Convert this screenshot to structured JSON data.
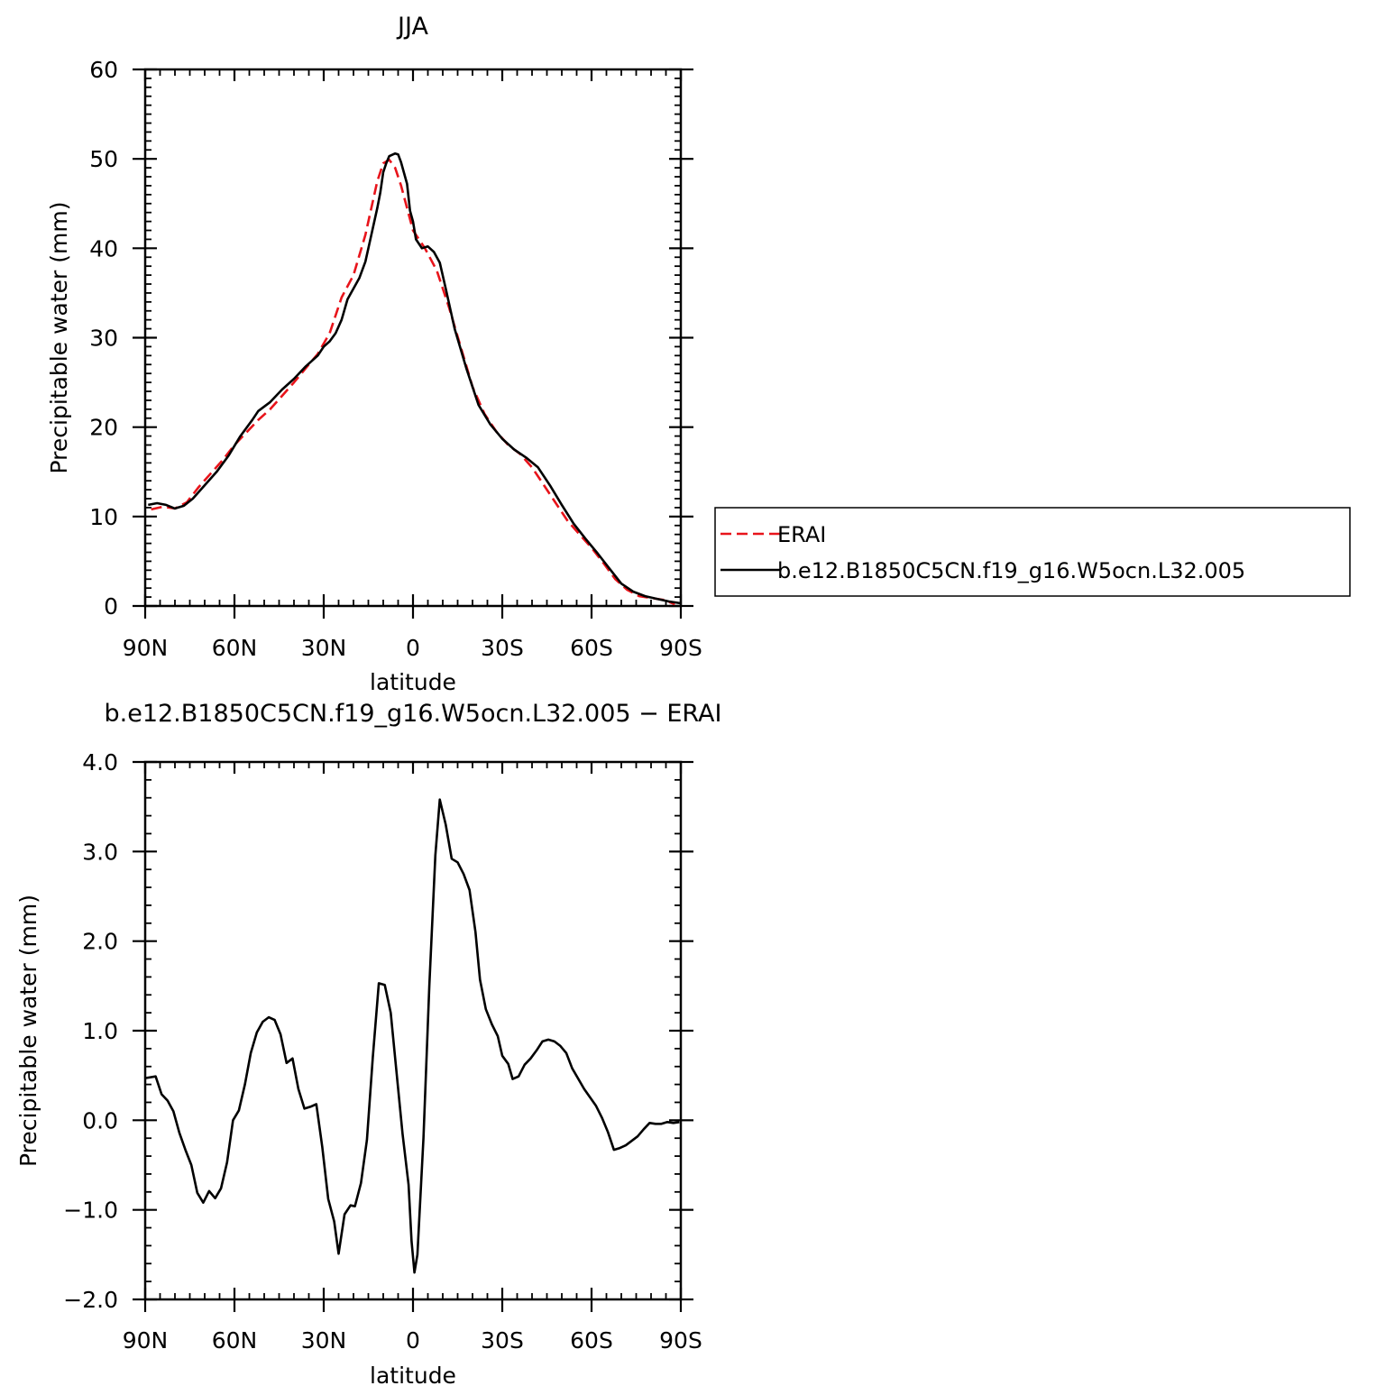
{
  "chart_data": [
    {
      "type": "line",
      "title": "JJA",
      "xlabel": "latitude",
      "ylabel": "Precipitable water (mm)",
      "xlim": [
        90,
        -90
      ],
      "ylim": [
        0,
        60
      ],
      "x_ticks": [
        90,
        60,
        30,
        0,
        -30,
        -60,
        -90
      ],
      "x_tick_labels": [
        "90N",
        "60N",
        "30N",
        "0",
        "30S",
        "60S",
        "90S"
      ],
      "y_ticks": [
        0,
        10,
        20,
        30,
        40,
        50,
        60
      ],
      "y_tick_labels": [
        "0",
        "10",
        "20",
        "30",
        "40",
        "50",
        "60"
      ],
      "grid": false,
      "legend": "right",
      "series": [
        {
          "name": "ERAI",
          "color": "#e8141b",
          "style": "dashed",
          "points": [
            [
              88,
              10.8
            ],
            [
              84,
              11.1
            ],
            [
              80,
              10.9
            ],
            [
              76,
              11.6
            ],
            [
              72,
              13.3
            ],
            [
              68,
              14.8
            ],
            [
              64,
              16.3
            ],
            [
              60,
              18
            ],
            [
              56,
              19.4
            ],
            [
              52,
              20.8
            ],
            [
              48,
              22
            ],
            [
              44,
              23.5
            ],
            [
              40,
              25
            ],
            [
              36,
              26.6
            ],
            [
              32,
              28.2
            ],
            [
              28,
              30.5
            ],
            [
              24,
              34.5
            ],
            [
              20,
              37
            ],
            [
              16,
              41.5
            ],
            [
              14,
              44.5
            ],
            [
              12,
              47.5
            ],
            [
              10,
              49.5
            ],
            [
              8,
              49.9
            ],
            [
              6,
              49
            ],
            [
              4,
              47
            ],
            [
              2,
              44.5
            ],
            [
              0,
              42
            ],
            [
              -4,
              40
            ],
            [
              -8,
              37.5
            ],
            [
              -12,
              33.5
            ],
            [
              -16,
              29
            ],
            [
              -20,
              24.5
            ],
            [
              -24,
              21.5
            ],
            [
              -28,
              19.5
            ],
            [
              -32,
              18
            ],
            [
              -36,
              17
            ],
            [
              -40,
              15.5
            ],
            [
              -44,
              13.5
            ],
            [
              -48,
              11.5
            ],
            [
              -52,
              9.5
            ],
            [
              -56,
              8
            ],
            [
              -60,
              6.5
            ],
            [
              -64,
              4.8
            ],
            [
              -68,
              3
            ],
            [
              -72,
              1.8
            ],
            [
              -76,
              1.1
            ],
            [
              -80,
              0.9
            ],
            [
              -84,
              0.7
            ],
            [
              -88,
              0.2
            ]
          ]
        },
        {
          "name": "b.e12.B1850C5CN.f19_g16.W5ocn.L32.005",
          "color": "#000000",
          "style": "solid",
          "points": [
            [
              89,
              11.3
            ],
            [
              86,
              11.5
            ],
            [
              83,
              11.3
            ],
            [
              80,
              10.9
            ],
            [
              77,
              11.2
            ],
            [
              74,
              12
            ],
            [
              70,
              13.5
            ],
            [
              66,
              15
            ],
            [
              62,
              16.8
            ],
            [
              58,
              19
            ],
            [
              54,
              20.8
            ],
            [
              52,
              21.8
            ],
            [
              48,
              22.8
            ],
            [
              44,
              24.2
            ],
            [
              40,
              25.4
            ],
            [
              36,
              26.8
            ],
            [
              32,
              28
            ],
            [
              30,
              29
            ],
            [
              28,
              29.6
            ],
            [
              26,
              30.5
            ],
            [
              24,
              32
            ],
            [
              22,
              34.3
            ],
            [
              20,
              35.5
            ],
            [
              18,
              36.7
            ],
            [
              16,
              38.5
            ],
            [
              14,
              41.5
            ],
            [
              12,
              44.5
            ],
            [
              11,
              46.2
            ],
            [
              10,
              48.5
            ],
            [
              9,
              49.5
            ],
            [
              8,
              50.3
            ],
            [
              6,
              50.6
            ],
            [
              5,
              50.5
            ],
            [
              4,
              49.6
            ],
            [
              2,
              47.2
            ],
            [
              1,
              44.2
            ],
            [
              0,
              43
            ],
            [
              -1,
              41
            ],
            [
              -3,
              40
            ],
            [
              -5,
              40.2
            ],
            [
              -7,
              39.6
            ],
            [
              -9,
              38.4
            ],
            [
              -11,
              35.5
            ],
            [
              -14,
              31
            ],
            [
              -18,
              26.5
            ],
            [
              -22,
              22.5
            ],
            [
              -26,
              20.3
            ],
            [
              -30,
              18.7
            ],
            [
              -34,
              17.5
            ],
            [
              -38,
              16.6
            ],
            [
              -42,
              15.5
            ],
            [
              -46,
              13.5
            ],
            [
              -50,
              11.3
            ],
            [
              -54,
              9.2
            ],
            [
              -58,
              7.5
            ],
            [
              -62,
              5.9
            ],
            [
              -66,
              4.2
            ],
            [
              -70,
              2.5
            ],
            [
              -74,
              1.6
            ],
            [
              -78,
              1.1
            ],
            [
              -82,
              0.8
            ],
            [
              -86,
              0.5
            ],
            [
              -90,
              0.3
            ]
          ]
        }
      ]
    },
    {
      "type": "line",
      "title": "b.e12.B1850C5CN.f19_g16.W5ocn.L32.005 - ERAI",
      "xlabel": "latitude",
      "ylabel": "Precipitable water (mm)",
      "xlim": [
        90,
        -90
      ],
      "ylim": [
        -2.0,
        4.0
      ],
      "x_ticks": [
        90,
        60,
        30,
        0,
        -30,
        -60,
        -90
      ],
      "x_tick_labels": [
        "90N",
        "60N",
        "30N",
        "0",
        "30S",
        "60S",
        "90S"
      ],
      "y_ticks": [
        -2.0,
        -1.0,
        0.0,
        1.0,
        2.0,
        3.0,
        4.0
      ],
      "y_tick_labels": [
        "-2.0",
        "-1.0",
        "0.0",
        "1.0",
        "2.0",
        "3.0",
        "4.0"
      ],
      "grid": false,
      "series": [
        {
          "color": "#000000",
          "style": "solid",
          "points": [
            [
              90,
              0.47
            ],
            [
              86.5,
              0.49
            ],
            [
              84.5,
              0.29
            ],
            [
              82.5,
              0.22
            ],
            [
              80.5,
              0.1
            ],
            [
              78.5,
              -0.14
            ],
            [
              76.5,
              -0.33
            ],
            [
              74.5,
              -0.5
            ],
            [
              72.5,
              -0.81
            ],
            [
              70.5,
              -0.92
            ],
            [
              68.5,
              -0.79
            ],
            [
              66.5,
              -0.87
            ],
            [
              64.5,
              -0.76
            ],
            [
              62.5,
              -0.47
            ],
            [
              60.5,
              0
            ],
            [
              58.5,
              0.11
            ],
            [
              56.5,
              0.4
            ],
            [
              54.5,
              0.75
            ],
            [
              52.5,
              0.98
            ],
            [
              50.5,
              1.1
            ],
            [
              48.5,
              1.15
            ],
            [
              46.5,
              1.12
            ],
            [
              44.5,
              0.96
            ],
            [
              42.5,
              0.64
            ],
            [
              40.5,
              0.69
            ],
            [
              38.5,
              0.35
            ],
            [
              36.5,
              0.13
            ],
            [
              34.5,
              0.15
            ],
            [
              32.5,
              0.18
            ],
            [
              30.5,
              -0.3
            ],
            [
              28.5,
              -0.88
            ],
            [
              26.5,
              -1.13
            ],
            [
              25,
              -1.49
            ],
            [
              23,
              -1.05
            ],
            [
              21,
              -0.95
            ],
            [
              19.5,
              -0.96
            ],
            [
              17.5,
              -0.7
            ],
            [
              15.5,
              -0.22
            ],
            [
              13.5,
              0.7
            ],
            [
              11.5,
              1.53
            ],
            [
              9.5,
              1.51
            ],
            [
              7.5,
              1.2
            ],
            [
              5.5,
              0.52
            ],
            [
              3.5,
              -0.15
            ],
            [
              1.5,
              -0.72
            ],
            [
              0.5,
              -1.35
            ],
            [
              -0.5,
              -1.7
            ],
            [
              -1.5,
              -1.5
            ],
            [
              -3.5,
              -0.2
            ],
            [
              -5.5,
              1.5
            ],
            [
              -7.5,
              2.96
            ],
            [
              -9,
              3.58
            ],
            [
              -11,
              3.3
            ],
            [
              -13,
              2.92
            ],
            [
              -15,
              2.88
            ],
            [
              -17,
              2.75
            ],
            [
              -19,
              2.57
            ],
            [
              -21,
              2.1
            ],
            [
              -22.5,
              1.57
            ],
            [
              -24.5,
              1.24
            ],
            [
              -26.5,
              1.07
            ],
            [
              -28.5,
              0.94
            ],
            [
              -30,
              0.72
            ],
            [
              -32,
              0.63
            ],
            [
              -33.5,
              0.46
            ],
            [
              -35.5,
              0.49
            ],
            [
              -37.5,
              0.62
            ],
            [
              -39.5,
              0.69
            ],
            [
              -41.5,
              0.78
            ],
            [
              -43.5,
              0.88
            ],
            [
              -45.5,
              0.9
            ],
            [
              -47.5,
              0.88
            ],
            [
              -49.5,
              0.83
            ],
            [
              -51.5,
              0.75
            ],
            [
              -53.5,
              0.58
            ],
            [
              -57.5,
              0.35
            ],
            [
              -61.5,
              0.16
            ],
            [
              -63.5,
              0.03
            ],
            [
              -65.5,
              -0.13
            ],
            [
              -67.5,
              -0.33
            ],
            [
              -69.5,
              -0.31
            ],
            [
              -71.5,
              -0.28
            ],
            [
              -73.5,
              -0.23
            ],
            [
              -75.5,
              -0.18
            ],
            [
              -77.5,
              -0.1
            ],
            [
              -79.5,
              -0.03
            ],
            [
              -81.5,
              -0.04
            ],
            [
              -83.5,
              -0.04
            ],
            [
              -85.5,
              -0.02
            ],
            [
              -87.5,
              -0.03
            ],
            [
              -89.5,
              -0.02
            ]
          ]
        }
      ]
    }
  ]
}
